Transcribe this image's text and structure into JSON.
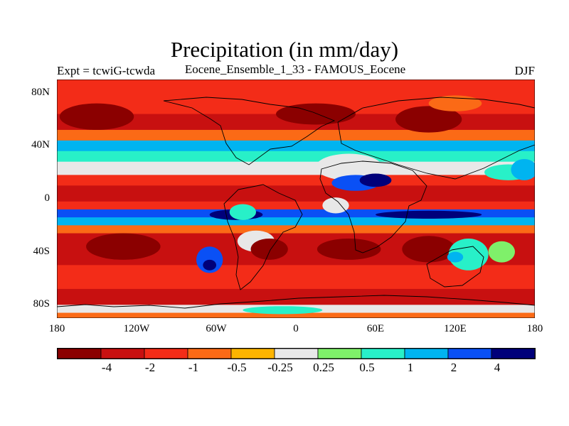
{
  "title": "Precipitation (in mm/day)",
  "left_label": "Expt = tcwiG-tcwda",
  "center_label": "Eocene_Ensemble_1_33 - FAMOUS_Eocene",
  "right_label": "DJF",
  "y_labels": [
    "80N",
    "40N",
    "0",
    "40S",
    "80S"
  ],
  "x_labels": [
    "180",
    "120W",
    "60W",
    "0",
    "60E",
    "120E",
    "180"
  ],
  "colorbar": {
    "colors": [
      "#8b0000",
      "#c81010",
      "#f32c18",
      "#fb6a16",
      "#fdb400",
      "#e8e8e8",
      "#7ff06a",
      "#28f0c8",
      "#00b4f0",
      "#0a50f5",
      "#00007a"
    ],
    "labels": [
      "-4",
      "-2",
      "-1",
      "-0.5",
      "-0.25",
      "0.25",
      "0.5",
      "1",
      "2",
      "4"
    ]
  },
  "chart_data": {
    "type": "heatmap",
    "title": "Precipitation (in mm/day)",
    "subtitle": "Eocene_Ensemble_1_33 - FAMOUS_Eocene",
    "season": "DJF",
    "xlim": [
      -180,
      180
    ],
    "ylim": [
      -90,
      90
    ],
    "x_ticks": [
      -180,
      -120,
      -60,
      0,
      60,
      120,
      180
    ],
    "y_ticks": [
      80,
      40,
      0,
      -40,
      -80
    ],
    "levels": [
      -4,
      -2,
      -1,
      -0.5,
      -0.25,
      0.25,
      0.5,
      1,
      2,
      4
    ],
    "bands": [
      {
        "lat": [
          86,
          90
        ],
        "value": -2
      },
      {
        "lat": [
          64,
          86
        ],
        "value": -1.5
      },
      {
        "lat": [
          52,
          64
        ],
        "value": -3
      },
      {
        "lat": [
          44,
          52
        ],
        "value": -1
      },
      {
        "lat": [
          36,
          44
        ],
        "value": 1.5
      },
      {
        "lat": [
          28,
          36
        ],
        "value": 0.6
      },
      {
        "lat": [
          18,
          28
        ],
        "value": 0
      },
      {
        "lat": [
          10,
          18
        ],
        "value": -1.5
      },
      {
        "lat": [
          -2,
          10
        ],
        "value": -4
      },
      {
        "lat": [
          -8,
          -2
        ],
        "value": -1.5
      },
      {
        "lat": [
          -14,
          -8
        ],
        "value": 3
      },
      {
        "lat": [
          -20,
          -14
        ],
        "value": 1
      },
      {
        "lat": [
          -26,
          -20
        ],
        "value": -1
      },
      {
        "lat": [
          -50,
          -26
        ],
        "value": -2.5
      },
      {
        "lat": [
          -68,
          -50
        ],
        "value": -1.5
      },
      {
        "lat": [
          -80,
          -68
        ],
        "value": -2.5
      },
      {
        "lat": [
          -86,
          -80
        ],
        "value": 0
      },
      {
        "lat": [
          -90,
          -86
        ],
        "value": -1
      }
    ],
    "blobs": [
      {
        "lon": -150,
        "lat": 62,
        "rx": 28,
        "ry": 10,
        "value": -5
      },
      {
        "lon": 15,
        "lat": 64,
        "rx": 30,
        "ry": 8,
        "value": -5
      },
      {
        "lon": 100,
        "lat": 60,
        "rx": 25,
        "ry": 10,
        "value": -5
      },
      {
        "lon": 120,
        "lat": 72,
        "rx": 20,
        "ry": 6,
        "value": -1
      },
      {
        "lon": 40,
        "lat": 24,
        "rx": 25,
        "ry": 10,
        "value": 0
      },
      {
        "lon": 45,
        "lat": 12,
        "rx": 18,
        "ry": 6,
        "value": 3
      },
      {
        "lon": 60,
        "lat": 14,
        "rx": 12,
        "ry": 5,
        "value": 5
      },
      {
        "lon": 160,
        "lat": 20,
        "rx": 18,
        "ry": 6,
        "value": 0.8
      },
      {
        "lon": 172,
        "lat": 22,
        "rx": 10,
        "ry": 8,
        "value": 1.5
      },
      {
        "lon": -45,
        "lat": -12,
        "rx": 20,
        "ry": 4,
        "value": 5
      },
      {
        "lon": 100,
        "lat": -12,
        "rx": 40,
        "ry": 3,
        "value": 5
      },
      {
        "lon": -65,
        "lat": -46,
        "rx": 10,
        "ry": 10,
        "value": 2
      },
      {
        "lon": -65,
        "lat": -50,
        "rx": 5,
        "ry": 4,
        "value": 5
      },
      {
        "lon": -30,
        "lat": -32,
        "rx": 14,
        "ry": 8,
        "value": 0
      },
      {
        "lon": -130,
        "lat": -36,
        "rx": 28,
        "ry": 10,
        "value": -5
      },
      {
        "lon": -20,
        "lat": -38,
        "rx": 14,
        "ry": 8,
        "value": -5
      },
      {
        "lon": 40,
        "lat": -38,
        "rx": 24,
        "ry": 8,
        "value": -5
      },
      {
        "lon": 100,
        "lat": -38,
        "rx": 20,
        "ry": 10,
        "value": -5
      },
      {
        "lon": 130,
        "lat": -42,
        "rx": 15,
        "ry": 12,
        "value": 0.8
      },
      {
        "lon": 120,
        "lat": -44,
        "rx": 6,
        "ry": 4,
        "value": 1.5
      },
      {
        "lon": 155,
        "lat": -40,
        "rx": 10,
        "ry": 8,
        "value": 0.3
      },
      {
        "lon": -40,
        "lat": -10,
        "rx": 10,
        "ry": 6,
        "value": 0.6
      },
      {
        "lon": 30,
        "lat": -5,
        "rx": 10,
        "ry": 6,
        "value": 0
      },
      {
        "lon": -10,
        "lat": -84,
        "rx": 30,
        "ry": 3,
        "value": 0.6
      }
    ]
  }
}
